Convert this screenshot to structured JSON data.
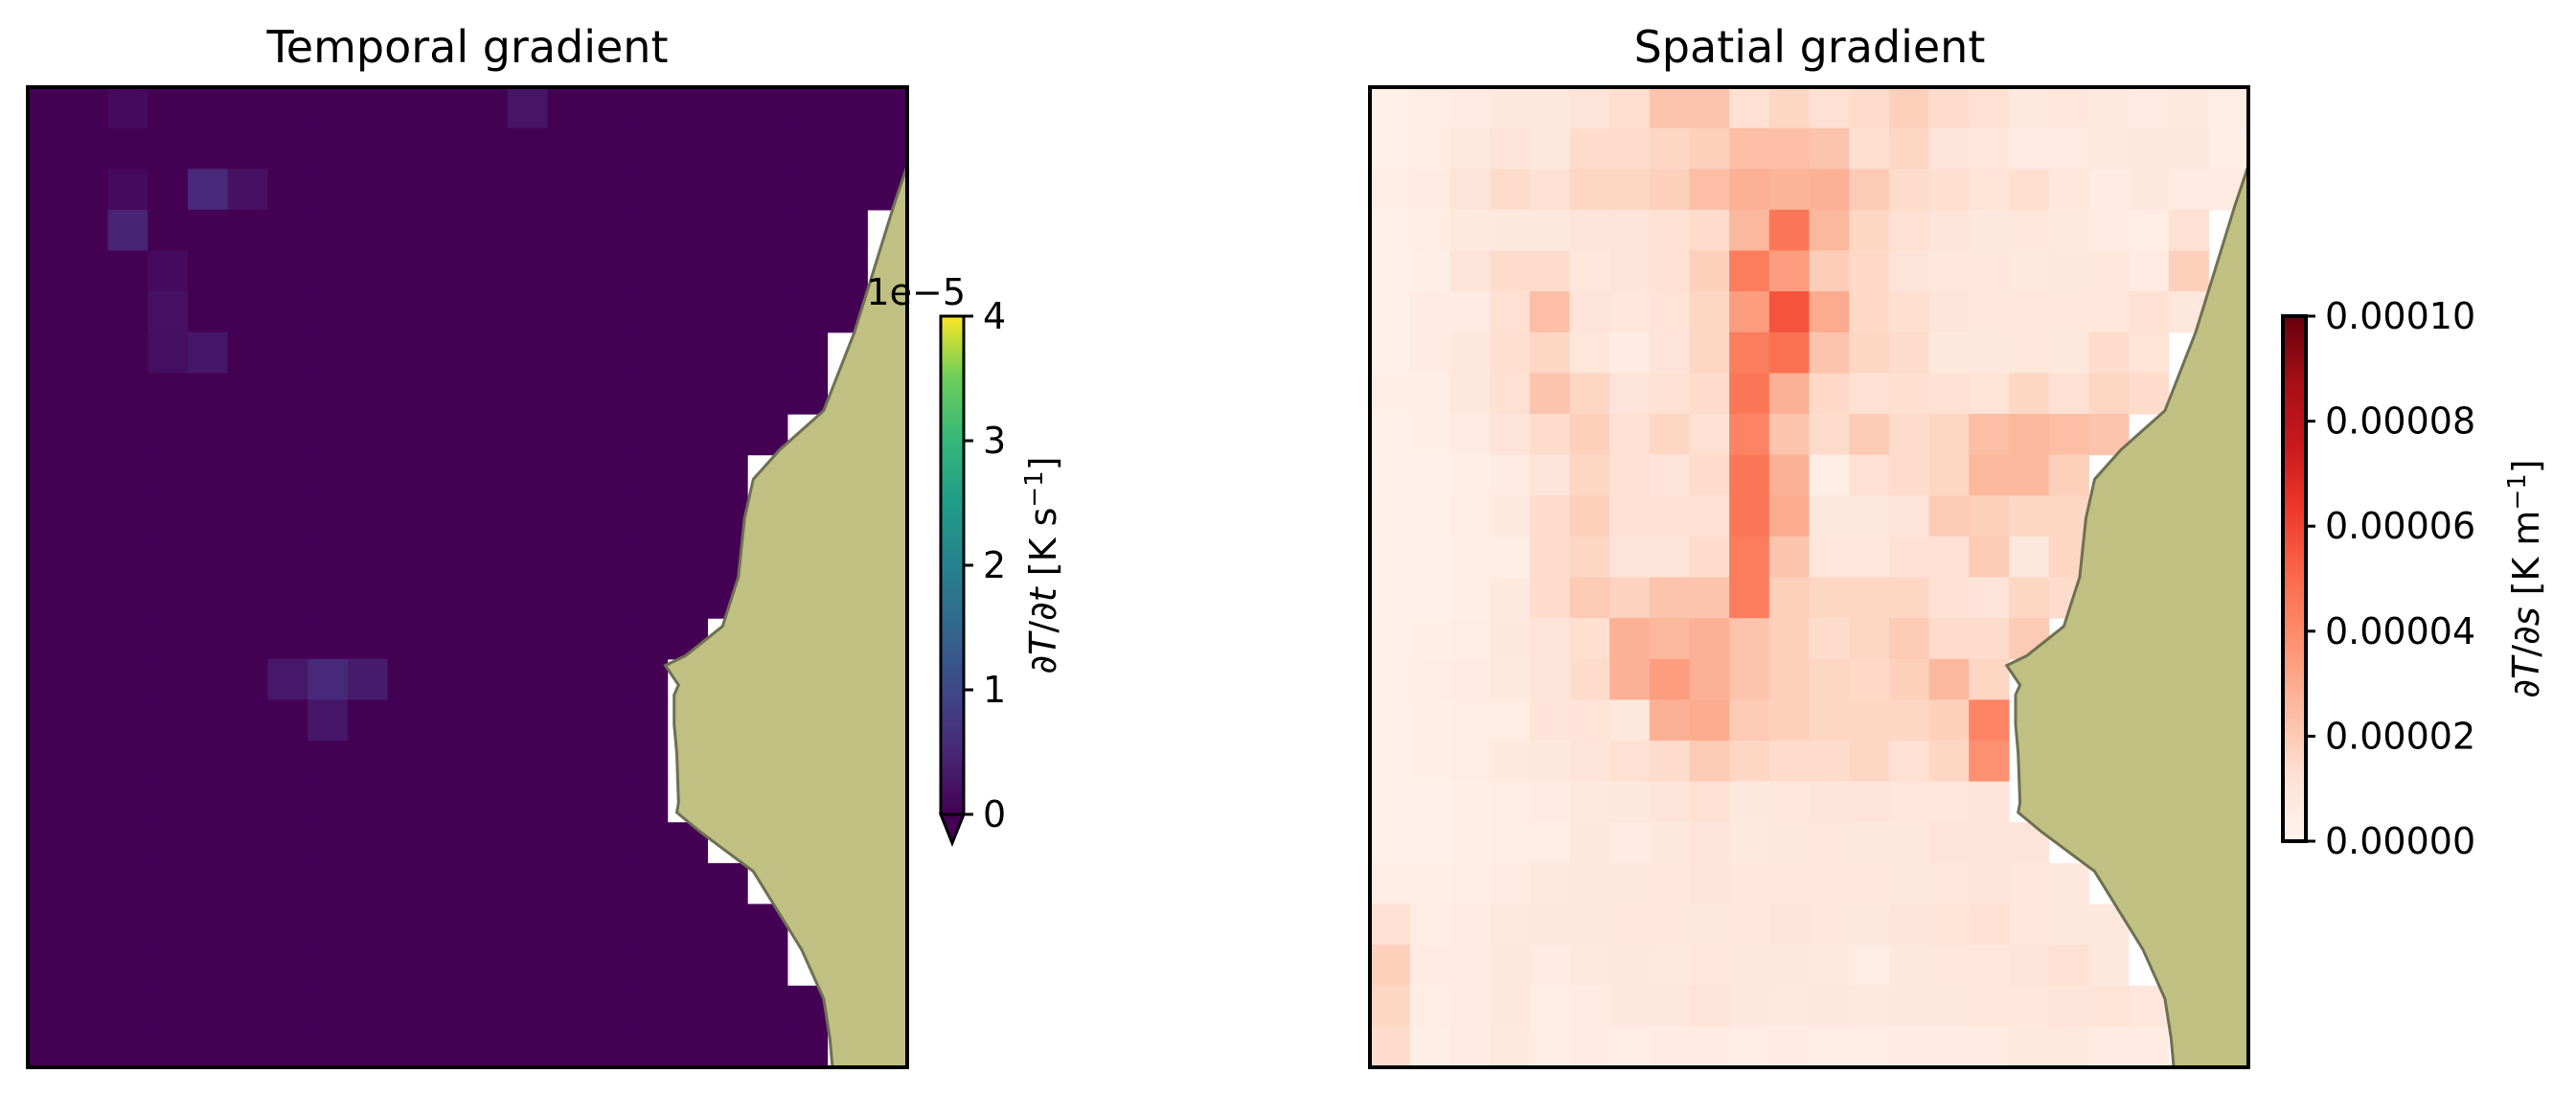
{
  "chart_data": [
    {
      "type": "heatmap",
      "title": "Temporal gradient",
      "rows": 24,
      "cols": 22,
      "background_value": 0,
      "hot_cells": [
        {
          "row": 0,
          "col": 2,
          "value": 0.12
        },
        {
          "row": 0,
          "col": 12,
          "value": 0.25
        },
        {
          "row": 2,
          "col": 2,
          "value": 0.12
        },
        {
          "row": 2,
          "col": 4,
          "value": 0.5
        },
        {
          "row": 2,
          "col": 5,
          "value": 0.2
        },
        {
          "row": 3,
          "col": 2,
          "value": 0.45
        },
        {
          "row": 4,
          "col": 3,
          "value": 0.12
        },
        {
          "row": 5,
          "col": 3,
          "value": 0.2
        },
        {
          "row": 6,
          "col": 3,
          "value": 0.18
        },
        {
          "row": 6,
          "col": 4,
          "value": 0.28
        },
        {
          "row": 14,
          "col": 6,
          "value": 0.3
        },
        {
          "row": 14,
          "col": 7,
          "value": 0.5
        },
        {
          "row": 14,
          "col": 8,
          "value": 0.35
        },
        {
          "row": 15,
          "col": 7,
          "value": 0.28
        }
      ],
      "colormap": "viridis",
      "colorbar": {
        "min": 0,
        "max": 4,
        "ticks": [
          "0",
          "1",
          "2",
          "3",
          "4"
        ],
        "offset_label": "1e−5",
        "label_parts": [
          "∂",
          "T",
          "/∂",
          "t",
          " [K s",
          "−1",
          "]"
        ],
        "extend": "min"
      },
      "land_color": "#bfc081"
    },
    {
      "type": "heatmap",
      "title": "Spatial gradient",
      "rows": 24,
      "cols": 22,
      "value_grid": [
        [
          0.3,
          0.5,
          0.6,
          0.8,
          0.8,
          1.0,
          1.3,
          2.2,
          2.2,
          1.2,
          1.6,
          1.2,
          1.4,
          1.8,
          1.4,
          1.2,
          0.7,
          0.9,
          0.7,
          0.6,
          0.7,
          0.5
        ],
        [
          0.3,
          0.5,
          0.7,
          1.0,
          0.8,
          1.4,
          1.4,
          1.6,
          1.8,
          2.4,
          2.4,
          2.2,
          1.3,
          1.6,
          1.0,
          0.9,
          0.6,
          0.6,
          0.7,
          0.8,
          0.8,
          0.4
        ],
        [
          0.4,
          0.6,
          1.0,
          1.4,
          1.2,
          1.6,
          1.6,
          1.8,
          2.4,
          2.8,
          2.7,
          2.8,
          2.0,
          1.4,
          1.3,
          1.1,
          1.3,
          0.9,
          0.6,
          0.8,
          0.6,
          0.6
        ],
        [
          0.3,
          0.5,
          0.7,
          0.8,
          0.8,
          1.0,
          1.0,
          1.2,
          1.4,
          2.6,
          4.6,
          2.6,
          1.6,
          1.2,
          1.0,
          0.8,
          0.9,
          0.7,
          0.6,
          0.5,
          1.2,
          0.6
        ],
        [
          0.3,
          0.4,
          1.0,
          1.4,
          1.4,
          0.9,
          1.0,
          1.2,
          1.8,
          4.4,
          3.4,
          1.9,
          1.5,
          1.0,
          0.9,
          0.9,
          0.7,
          0.8,
          0.9,
          0.6,
          1.8,
          0.6
        ],
        [
          0.3,
          0.6,
          0.6,
          1.2,
          2.4,
          1.0,
          0.9,
          1.1,
          1.6,
          3.4,
          5.6,
          3.0,
          1.5,
          1.3,
          1.0,
          0.9,
          0.9,
          0.9,
          0.9,
          1.2,
          0.8,
          0.7
        ],
        [
          0.3,
          0.6,
          0.8,
          1.3,
          1.6,
          0.9,
          0.6,
          1.0,
          1.6,
          4.4,
          4.8,
          2.2,
          1.6,
          1.4,
          0.8,
          0.8,
          0.9,
          0.8,
          1.4,
          1.1,
          1.2,
          0.7
        ],
        [
          0.4,
          0.4,
          0.8,
          1.2,
          2.2,
          1.6,
          1.0,
          1.2,
          1.4,
          4.6,
          2.8,
          1.5,
          1.2,
          1.3,
          1.2,
          1.1,
          1.6,
          1.2,
          1.6,
          1.4,
          0.9,
          0.7
        ],
        [
          0.3,
          0.4,
          0.6,
          1.0,
          1.4,
          1.8,
          1.2,
          1.6,
          1.2,
          4.2,
          2.2,
          1.4,
          2.0,
          1.4,
          1.6,
          2.4,
          2.6,
          2.4,
          2.2,
          1.8,
          1.3,
          0.8
        ],
        [
          0.2,
          0.3,
          0.4,
          0.6,
          1.0,
          1.6,
          1.2,
          1.0,
          1.4,
          4.6,
          2.8,
          0.4,
          1.2,
          1.4,
          1.6,
          2.6,
          2.6,
          1.8,
          2.4,
          2.0,
          0.8,
          0.6
        ],
        [
          0.3,
          0.3,
          0.5,
          0.7,
          1.4,
          1.8,
          1.2,
          1.2,
          1.2,
          4.6,
          3.0,
          0.8,
          0.8,
          1.0,
          2.0,
          1.8,
          1.6,
          1.6,
          1.4,
          1.0,
          0.6,
          0.6
        ],
        [
          0.2,
          0.3,
          0.4,
          0.4,
          1.4,
          1.6,
          1.0,
          1.0,
          1.4,
          4.4,
          2.2,
          0.9,
          0.9,
          1.2,
          1.2,
          2.0,
          0.8,
          1.6,
          1.4,
          1.0,
          0.6,
          0.6
        ],
        [
          0.2,
          0.3,
          0.4,
          0.7,
          1.4,
          2.0,
          1.7,
          2.2,
          2.2,
          4.4,
          1.8,
          1.6,
          1.6,
          1.6,
          1.2,
          1.0,
          1.6,
          1.4,
          0.6,
          0.6,
          0.5,
          0.4
        ],
        [
          0.3,
          0.4,
          0.5,
          0.8,
          1.0,
          1.3,
          2.8,
          2.6,
          2.8,
          2.2,
          1.8,
          1.4,
          1.6,
          2.0,
          1.4,
          1.4,
          2.0,
          1.4,
          0.8,
          0.6,
          0.6,
          0.5
        ],
        [
          0.3,
          0.5,
          0.6,
          0.7,
          1.0,
          1.4,
          2.8,
          3.4,
          2.8,
          2.2,
          1.8,
          1.6,
          1.5,
          1.8,
          2.6,
          1.6,
          1.0,
          1.4,
          0.8,
          0.6,
          0.6,
          0.5
        ],
        [
          0.3,
          0.4,
          0.5,
          0.5,
          1.0,
          1.1,
          0.8,
          2.8,
          3.0,
          2.0,
          1.8,
          1.6,
          1.6,
          1.6,
          1.8,
          4.2,
          3.8,
          3.8,
          1.2,
          0.8,
          0.6,
          0.5
        ],
        [
          0.3,
          0.4,
          0.5,
          0.7,
          0.8,
          1.0,
          1.2,
          1.4,
          2.0,
          1.6,
          1.4,
          1.4,
          1.6,
          1.2,
          1.6,
          3.8,
          4.4,
          2.2,
          1.2,
          0.8,
          0.6,
          0.5
        ],
        [
          0.3,
          0.3,
          0.4,
          0.5,
          0.6,
          0.7,
          0.8,
          1.0,
          1.2,
          0.8,
          0.9,
          1.0,
          1.0,
          0.9,
          0.9,
          1.0,
          1.2,
          1.4,
          1.0,
          0.8,
          0.6,
          0.5
        ],
        [
          0.3,
          0.3,
          0.4,
          0.5,
          0.5,
          0.8,
          0.6,
          0.8,
          1.0,
          0.7,
          0.8,
          0.9,
          0.8,
          0.8,
          1.0,
          1.0,
          1.0,
          0.8,
          0.6,
          0.6,
          0.5,
          0.5
        ],
        [
          0.4,
          0.4,
          0.5,
          0.6,
          0.7,
          0.8,
          0.8,
          0.9,
          1.0,
          0.9,
          0.9,
          0.9,
          0.9,
          0.8,
          0.9,
          1.0,
          0.9,
          0.8,
          0.8,
          0.6,
          0.6,
          0.5
        ],
        [
          1.2,
          0.5,
          0.6,
          0.7,
          0.8,
          0.8,
          0.9,
          0.9,
          0.8,
          0.9,
          1.0,
          0.9,
          0.8,
          1.0,
          1.1,
          1.2,
          0.9,
          0.8,
          0.8,
          0.7,
          0.6,
          0.5
        ],
        [
          1.8,
          0.6,
          0.6,
          0.8,
          0.6,
          0.7,
          0.8,
          0.7,
          0.9,
          0.8,
          0.8,
          0.7,
          0.5,
          0.8,
          0.9,
          0.9,
          1.0,
          1.2,
          0.8,
          0.8,
          0.6,
          0.5
        ],
        [
          1.6,
          0.5,
          0.6,
          0.8,
          0.5,
          0.6,
          0.8,
          0.8,
          1.0,
          0.8,
          0.7,
          0.8,
          0.7,
          0.8,
          0.8,
          0.9,
          0.9,
          1.0,
          1.1,
          0.9,
          0.6,
          0.5
        ],
        [
          1.4,
          0.4,
          0.6,
          0.7,
          0.5,
          0.6,
          0.5,
          0.6,
          0.6,
          0.5,
          0.6,
          0.5,
          0.5,
          0.6,
          0.6,
          0.6,
          0.7,
          0.7,
          0.6,
          0.6,
          0.6,
          0.5
        ]
      ],
      "colormap": "Reds",
      "colorbar": {
        "min": 0,
        "max": 0.0001,
        "ticks": [
          "0.00000",
          "0.00002",
          "0.00004",
          "0.00006",
          "0.00008",
          "0.00010"
        ],
        "label_parts": [
          "∂",
          "T",
          "/∂",
          "s",
          " [K m",
          "−1",
          "]"
        ],
        "value_scale": 1e-05
      },
      "land_color": "#bfc081"
    }
  ]
}
